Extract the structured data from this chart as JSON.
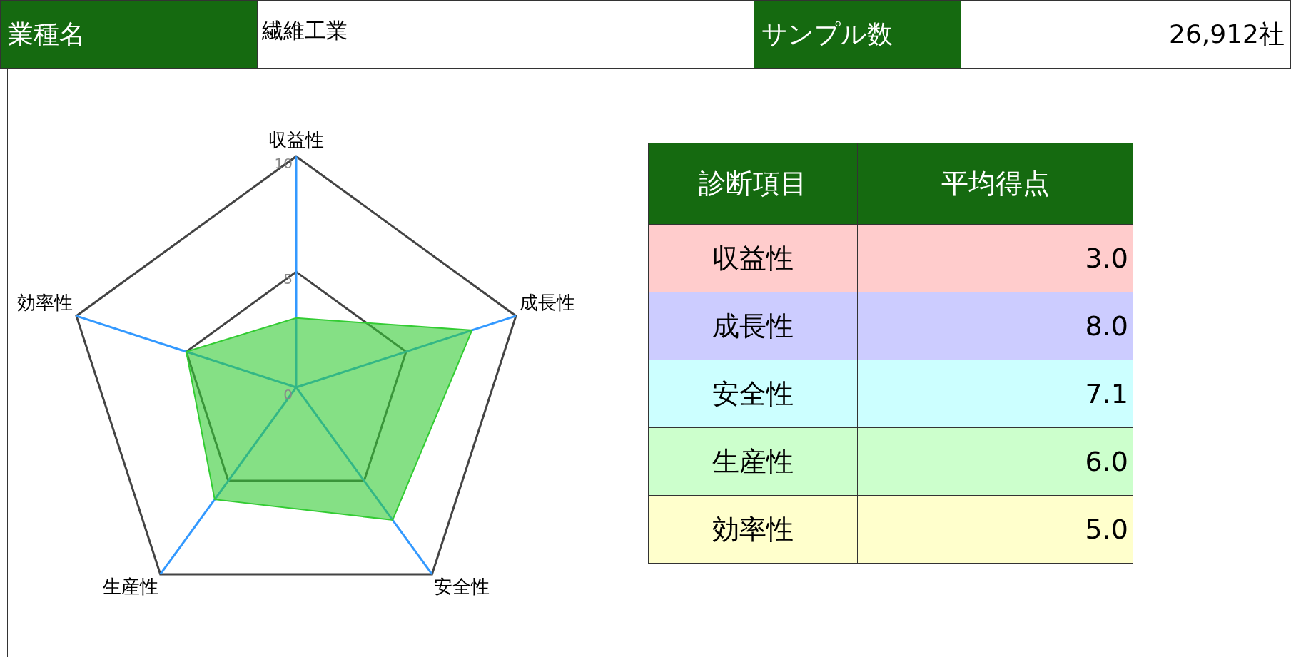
{
  "chart_data": {
    "type": "radar",
    "annotations": [
      "業種名",
      "繊維工業",
      "サンプル数",
      "26,912社",
      "診断項目",
      "平均得点"
    ],
    "categories": [
      "収益性",
      "成長性",
      "安全性",
      "生産性",
      "効率性"
    ],
    "series": [
      {
        "color": "#33cc33",
        "values": [
          3.0,
          8.0,
          7.1,
          6.0,
          5.0
        ]
      }
    ],
    "value_labels": [
      "3.0",
      "8.0",
      "7.1",
      "6.0",
      "5.0"
    ],
    "ylim": [
      0,
      10
    ],
    "yticks": [
      0,
      5,
      10
    ],
    "grid": true,
    "legend": false
  }
}
